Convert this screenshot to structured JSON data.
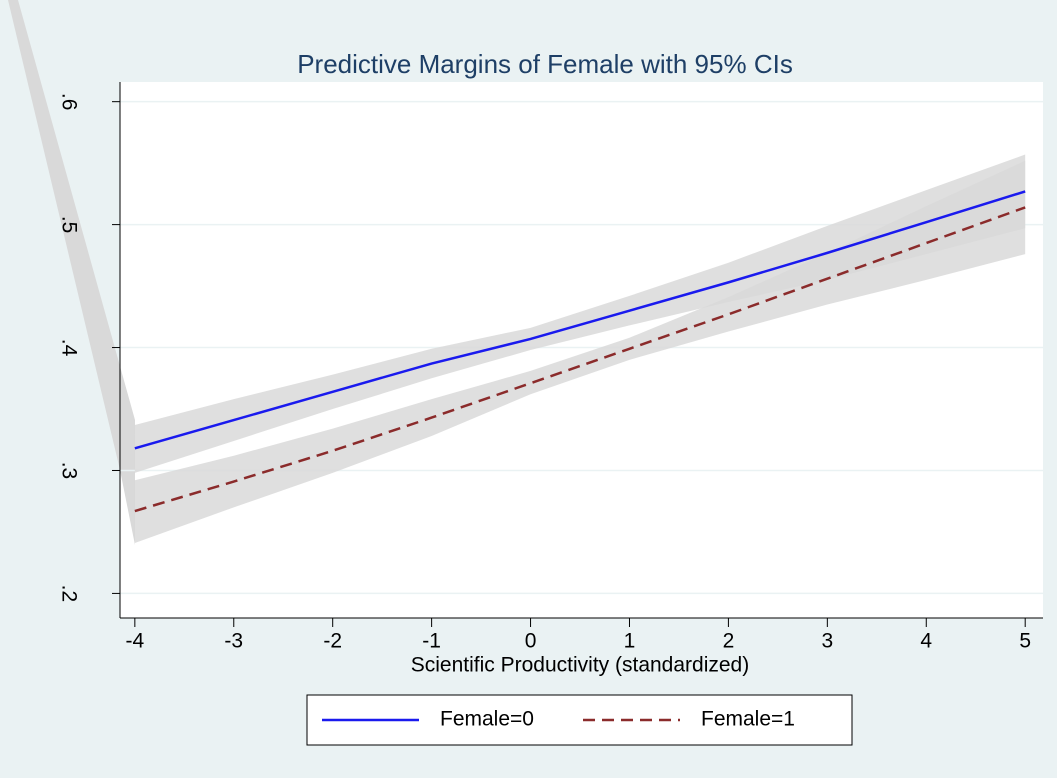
{
  "chart_data": {
    "type": "line",
    "title": "Predictive Margins of Female with 95% CIs",
    "x_label": "Scientific Productivity (standardized)",
    "x": [
      -4,
      -3,
      -2,
      -1,
      0,
      1,
      2,
      3,
      4,
      5
    ],
    "series": [
      {
        "name": "Female=0",
        "color": "#1a1aee",
        "dash": false,
        "values": [
          0.318,
          0.341,
          0.364,
          0.387,
          0.407,
          0.43,
          0.453,
          0.477,
          0.502,
          0.527
        ],
        "lower": [
          0.298,
          0.324,
          0.35,
          0.375,
          0.398,
          0.418,
          0.437,
          0.455,
          0.476,
          0.497
        ],
        "upper": [
          0.337,
          0.358,
          0.378,
          0.399,
          0.416,
          0.442,
          0.469,
          0.499,
          0.528,
          0.557
        ]
      },
      {
        "name": "Female=1",
        "color": "#8b2b2b",
        "dash": true,
        "values": [
          0.267,
          0.291,
          0.316,
          0.343,
          0.371,
          0.399,
          0.427,
          0.456,
          0.485,
          0.514
        ],
        "lower": [
          0.241,
          0.27,
          0.298,
          0.328,
          0.362,
          0.39,
          0.413,
          0.435,
          0.455,
          0.476
        ],
        "upper": [
          0.292,
          0.312,
          0.334,
          0.358,
          0.381,
          0.408,
          0.441,
          0.477,
          0.515,
          0.552
        ]
      }
    ],
    "band_color": "#d9d9d9",
    "xlim": [
      -4.15,
      5.18
    ],
    "xticks": [
      -4,
      -3,
      -2,
      -1,
      0,
      1,
      2,
      3,
      4,
      5
    ],
    "ylim": [
      0.18,
      0.616
    ],
    "yticks": [
      {
        "value": 0.2,
        "label": ".2"
      },
      {
        "value": 0.3,
        "label": ".3"
      },
      {
        "value": 0.4,
        "label": ".4"
      },
      {
        "value": 0.5,
        "label": ".5"
      },
      {
        "value": 0.6,
        "label": ".6"
      }
    ],
    "grid": true,
    "legend": "bottom"
  }
}
